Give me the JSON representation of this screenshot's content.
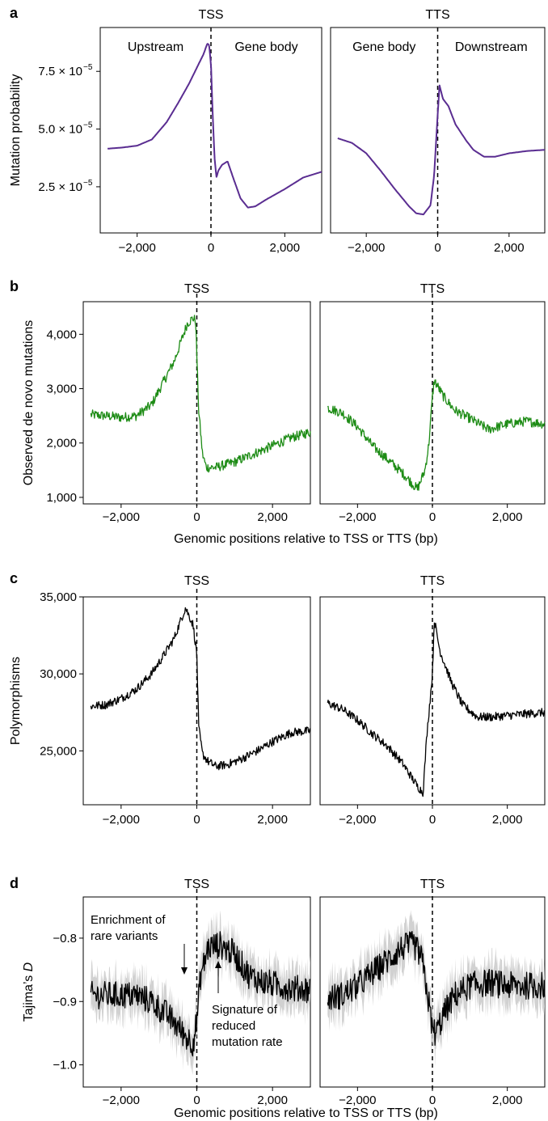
{
  "chart_data": [
    {
      "panel": "a",
      "type": "line",
      "ylabel": "Mutation probability",
      "xlabel": "",
      "y_tick_labels": [
        "2.5 × 10",
        "5.0 × 10",
        "7.5 × 10"
      ],
      "y_tick_exponent": "−5",
      "y_ticks": [
        2.5e-05,
        5e-05,
        7.5e-05
      ],
      "ylim": [
        5e-06,
        9.4e-05
      ],
      "color": "#5a2d91",
      "subplots": [
        {
          "title": "TSS",
          "regions": [
            "Upstream",
            "Gene body"
          ],
          "xlim": [
            -3000,
            3000
          ],
          "x_ticks": [
            -2000,
            0,
            2000
          ],
          "x_tick_labels": [
            "−2,000",
            "0",
            "2,000"
          ],
          "x": [
            -2800,
            -2400,
            -2000,
            -1600,
            -1200,
            -900,
            -600,
            -400,
            -200,
            -100,
            -50,
            0,
            50,
            100,
            150,
            200,
            300,
            450,
            600,
            800,
            1000,
            1200,
            1500,
            2000,
            2500,
            3000
          ],
          "y": [
            4.15e-05,
            4.2e-05,
            4.28e-05,
            4.55e-05,
            5.3e-05,
            6.1e-05,
            6.95e-05,
            7.6e-05,
            8.25e-05,
            8.7e-05,
            8.65e-05,
            7.8e-05,
            5.5e-05,
            3.7e-05,
            2.9e-05,
            3.2e-05,
            3.45e-05,
            3.6e-05,
            2.9e-05,
            2e-05,
            1.6e-05,
            1.65e-05,
            1.95e-05,
            2.4e-05,
            2.9e-05,
            3.15e-05
          ]
        },
        {
          "title": "TTS",
          "regions": [
            "Gene body",
            "Downstream"
          ],
          "xlim": [
            -3000,
            3000
          ],
          "x_ticks": [
            -2000,
            0,
            2000
          ],
          "x_tick_labels": [
            "−2,000",
            "0",
            "2,000"
          ],
          "x": [
            -2800,
            -2400,
            -2000,
            -1600,
            -1200,
            -800,
            -600,
            -400,
            -200,
            -100,
            0,
            50,
            150,
            300,
            500,
            800,
            1000,
            1300,
            1600,
            2000,
            2500,
            3000
          ],
          "y": [
            4.6e-05,
            4.4e-05,
            3.95e-05,
            3.2e-05,
            2.4e-05,
            1.65e-05,
            1.35e-05,
            1.3e-05,
            1.7e-05,
            3e-05,
            5.6e-05,
            6.9e-05,
            6.3e-05,
            6e-05,
            5.2e-05,
            4.5e-05,
            4.1e-05,
            3.8e-05,
            3.8e-05,
            3.95e-05,
            4.05e-05,
            4.1e-05
          ]
        }
      ]
    },
    {
      "panel": "b",
      "type": "line",
      "ylabel": "Observed de novo mutations",
      "xlabel": "Genomic positions relative to TSS or TTS (bp)",
      "y_ticks": [
        1000,
        2000,
        3000,
        4000
      ],
      "y_tick_labels": [
        "1,000",
        "2,000",
        "3,000",
        "4,000"
      ],
      "ylim": [
        880,
        4600
      ],
      "color": "#1e8c16",
      "noise": 90,
      "subplots": [
        {
          "title": "TSS",
          "xlim": [
            -3000,
            3000
          ],
          "x_ticks": [
            -2000,
            0,
            2000
          ],
          "x_tick_labels": [
            "−2,000",
            "0",
            "2,000"
          ],
          "x": [
            -2800,
            -2400,
            -2000,
            -1600,
            -1200,
            -900,
            -600,
            -400,
            -250,
            -100,
            -30,
            0,
            50,
            150,
            250,
            500,
            1000,
            1500,
            2000,
            2500,
            3000
          ],
          "y": [
            2520,
            2500,
            2470,
            2500,
            2700,
            3100,
            3500,
            3900,
            4200,
            4300,
            4250,
            3600,
            2600,
            1800,
            1550,
            1550,
            1650,
            1800,
            1950,
            2100,
            2200
          ]
        },
        {
          "title": "TTS",
          "xlim": [
            -3000,
            3000
          ],
          "x_ticks": [
            -2000,
            0,
            2000
          ],
          "x_tick_labels": [
            "−2,000",
            "0",
            "2,000"
          ],
          "x": [
            -2800,
            -2400,
            -2000,
            -1600,
            -1200,
            -800,
            -400,
            -200,
            -100,
            0,
            50,
            300,
            600,
            1000,
            1500,
            2000,
            2500,
            3000
          ],
          "y": [
            2650,
            2550,
            2300,
            1950,
            1700,
            1450,
            1150,
            1500,
            1950,
            2850,
            3150,
            2850,
            2600,
            2450,
            2250,
            2350,
            2400,
            2350
          ]
        }
      ]
    },
    {
      "panel": "c",
      "type": "line",
      "ylabel": "Polymorphisms",
      "xlabel": "",
      "y_ticks": [
        25000,
        30000,
        35000
      ],
      "y_tick_labels": [
        "25,000",
        "30,000",
        "35,000"
      ],
      "ylim": [
        21500,
        35000
      ],
      "color": "#000000",
      "noise": 280,
      "subplots": [
        {
          "title": "TSS",
          "xlim": [
            -3000,
            3000
          ],
          "x_ticks": [
            -2000,
            0,
            2000
          ],
          "x_tick_labels": [
            "−2,000",
            "0",
            "2,000"
          ],
          "x": [
            -2800,
            -2400,
            -2000,
            -1600,
            -1200,
            -900,
            -600,
            -300,
            -100,
            0,
            50,
            150,
            300,
            500,
            800,
            1200,
            1600,
            2000,
            2500,
            3000
          ],
          "y": [
            27900,
            28000,
            28400,
            29000,
            30000,
            31100,
            32300,
            34300,
            33200,
            31300,
            26500,
            24800,
            24300,
            24000,
            24100,
            24500,
            25000,
            25600,
            26200,
            26300
          ]
        },
        {
          "title": "TTS",
          "xlim": [
            -3000,
            3000
          ],
          "x_ticks": [
            -2000,
            0,
            2000
          ],
          "x_tick_labels": [
            "−2,000",
            "0",
            "2,000"
          ],
          "x": [
            -2800,
            -2400,
            -2000,
            -1600,
            -1200,
            -800,
            -400,
            -250,
            -150,
            0,
            50,
            200,
            500,
            800,
            1200,
            1600,
            2000,
            2500,
            3000
          ],
          "y": [
            28100,
            27700,
            27000,
            26100,
            25300,
            24200,
            22700,
            22300,
            26000,
            30000,
            33500,
            31500,
            29500,
            28000,
            27200,
            27200,
            27300,
            27400,
            27500
          ]
        }
      ]
    },
    {
      "panel": "d",
      "type": "line",
      "ylabel_prefix": "Tajima’s ",
      "ylabel_italic": "D",
      "xlabel": "Genomic positions relative to TSS or TTS (bp)",
      "y_ticks": [
        -1.0,
        -0.9,
        -0.8
      ],
      "y_tick_labels": [
        "−1.0",
        "−0.9",
        "−0.8"
      ],
      "ylim": [
        -1.035,
        -0.735
      ],
      "color": "#000000",
      "ci_color": "#c9c9c9",
      "noise": 0.022,
      "ci_halfwidth": 0.028,
      "annotations": [
        "Enrichment of\nrare variants",
        "Signature of\nreduced\nmutation rate"
      ],
      "subplots": [
        {
          "title": "TSS",
          "xlim": [
            -3000,
            3000
          ],
          "x_ticks": [
            -2000,
            0,
            2000
          ],
          "x_tick_labels": [
            "−2,000",
            "0",
            "2,000"
          ],
          "x": [
            -2800,
            -2400,
            -2000,
            -1600,
            -1200,
            -800,
            -500,
            -300,
            -100,
            0,
            100,
            300,
            600,
            1000,
            1400,
            1800,
            2200,
            2600,
            3000
          ],
          "y": [
            -0.89,
            -0.89,
            -0.89,
            -0.89,
            -0.9,
            -0.92,
            -0.94,
            -0.955,
            -0.965,
            -0.93,
            -0.86,
            -0.815,
            -0.81,
            -0.825,
            -0.86,
            -0.87,
            -0.875,
            -0.88,
            -0.88
          ]
        },
        {
          "title": "TTS",
          "xlim": [
            -3000,
            3000
          ],
          "x_ticks": [
            -2000,
            0,
            2000
          ],
          "x_tick_labels": [
            "−2,000",
            "0",
            "2,000"
          ],
          "x": [
            -2800,
            -2400,
            -2000,
            -1600,
            -1200,
            -800,
            -500,
            -300,
            -150,
            0,
            100,
            300,
            600,
            1000,
            1500,
            2000,
            2500,
            3000
          ],
          "y": [
            -0.895,
            -0.89,
            -0.875,
            -0.855,
            -0.835,
            -0.815,
            -0.81,
            -0.83,
            -0.88,
            -0.945,
            -0.95,
            -0.92,
            -0.89,
            -0.875,
            -0.87,
            -0.875,
            -0.875,
            -0.875
          ]
        }
      ]
    }
  ]
}
